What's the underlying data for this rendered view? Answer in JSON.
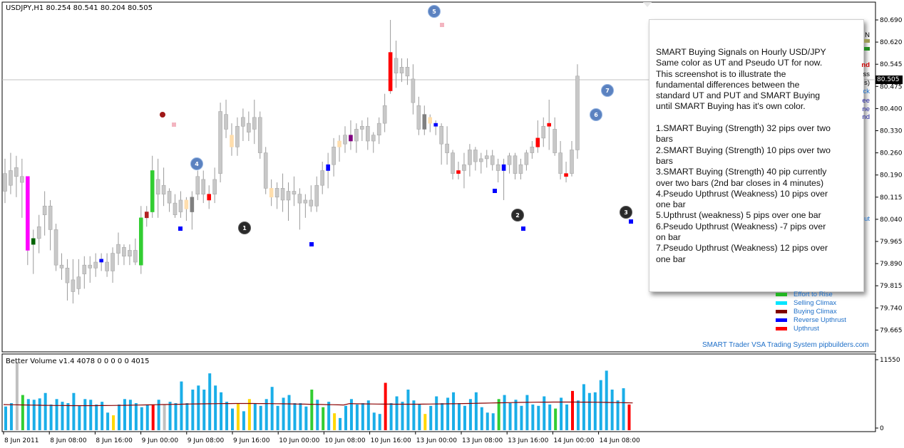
{
  "symbol_title": "USDJPY,H1  80.254 80.541 80.204 80.505",
  "volume_title": "Better Volume v1.4 4078 0 0 0 0 0 4015",
  "current_price": "80.505",
  "price_axis_labels": [
    "80.690",
    "80.620",
    "80.545",
    "80.475",
    "80.400",
    "80.330",
    "80.260",
    "80.190",
    "80.115",
    "80.040",
    "79.965",
    "79.890",
    "79.815",
    "79.740",
    "79.665"
  ],
  "volume_axis_top": "11550",
  "volume_axis_bottom": "0",
  "time_axis_labels": [
    "8 Jun 2011",
    "8 Jun 08:00",
    "8 Jun 16:00",
    "9 Jun 00:00",
    "9 Jun 08:00",
    "9 Jun 16:00",
    "10 Jun 00:00",
    "10 Jun 08:00",
    "10 Jun 16:00",
    "13 Jun 00:00",
    "13 Jun 08:00",
    "13 Jun 16:00",
    "14 Jun 00:00",
    "14 Jun 08:00"
  ],
  "callout_lines": [
    "SMART Buying Signals on Hourly USD/JPY",
    "Same color as UT and Pseudo UT for now.",
    "This screenshot is to illustrate the",
    "fundamental differences between the",
    "standard UT and PUT and SMART Buying",
    "until SMART Buying has it's own color.",
    "",
    "1.SMART Buying (Strength) 32 pips over two",
    "bars",
    "2.SMART Buying (Strength) 10 pips over two",
    "bars",
    "3.SMART Buying (Strength) 40 pip currently",
    "over two bars (2nd bar closes in 4 minutes)",
    "4.Pseudo Upthrust (Weakness) 10 pips over",
    "one bar",
    "5.Upthrust (weakness) 5 pips over one bar",
    "6.Pseudo Upthrust (Weakness) -7 pips over",
    "on bar",
    "7.Pseudo Upthrust (Weakness) 12 pips over",
    "one bar"
  ],
  "legend": [
    {
      "label": "Effort to Rise",
      "color": "#22b522"
    },
    {
      "label": "Selling Climax",
      "color": "#00e5ff"
    },
    {
      "label": "Buying Climax",
      "color": "#800000"
    },
    {
      "label": "Reverse Upthrust",
      "color": "#0000ff"
    },
    {
      "label": "Upthrust",
      "color": "#ff0000"
    }
  ],
  "peeking_labels": [
    {
      "text": "N",
      "color": "#000000"
    },
    {
      "text": "nd",
      "color": "#cc0000"
    },
    {
      "text": "ss",
      "color": "#000000"
    },
    {
      "text": "s)",
      "color": "#000000"
    },
    {
      "text": "ck",
      "color": "#1e6fc8"
    },
    {
      "text": "ee",
      "color": "#1e1e9c"
    },
    {
      "text": "ne",
      "color": "#1e1e9c"
    },
    {
      "text": "nd",
      "color": "#1e1e9c"
    },
    {
      "text": "ut",
      "color": "#1e6fc8"
    }
  ],
  "footer_brand": "SMART Trader VSA Trading System pipbuilders.com",
  "markers": [
    {
      "label": "1",
      "style": "dark"
    },
    {
      "label": "2",
      "style": "dark"
    },
    {
      "label": "3",
      "style": "dark"
    },
    {
      "label": "4",
      "style": "blue"
    },
    {
      "label": "5",
      "style": "blue"
    },
    {
      "label": "6",
      "style": "blue"
    },
    {
      "label": "7",
      "style": "blue"
    }
  ],
  "colors": {
    "candle_default": "#c8c8c8",
    "candle_border": "#999999",
    "volume_default": "#1aaee8",
    "volume_avg_line": "#8b0000"
  }
}
